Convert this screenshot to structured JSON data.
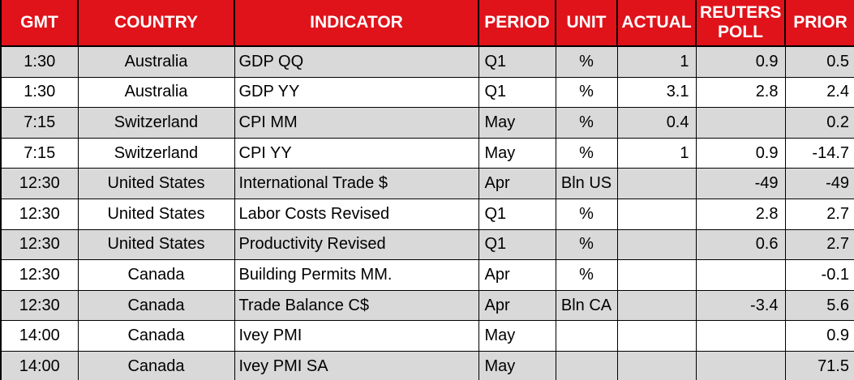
{
  "table": {
    "name": "economic-calendar",
    "columns": [
      {
        "key": "gmt",
        "label": "GMT"
      },
      {
        "key": "country",
        "label": "COUNTRY"
      },
      {
        "key": "indicator",
        "label": "INDICATOR"
      },
      {
        "key": "period",
        "label": "PERIOD"
      },
      {
        "key": "unit",
        "label": "UNIT"
      },
      {
        "key": "actual",
        "label": "ACTUAL"
      },
      {
        "key": "poll",
        "label": "REUTERS POLL"
      },
      {
        "key": "prior",
        "label": "PRIOR"
      }
    ],
    "rows": [
      {
        "gmt": "1:30",
        "country": "Australia",
        "indicator": "GDP QQ",
        "period": "Q1",
        "unit": "%",
        "actual": "1",
        "poll": "0.9",
        "prior": "0.5"
      },
      {
        "gmt": "1:30",
        "country": "Australia",
        "indicator": "GDP YY",
        "period": "Q1",
        "unit": "%",
        "actual": "3.1",
        "poll": "2.8",
        "prior": "2.4"
      },
      {
        "gmt": "7:15",
        "country": "Switzerland",
        "indicator": "CPI MM",
        "period": "May",
        "unit": "%",
        "actual": "0.4",
        "poll": "",
        "prior": "0.2"
      },
      {
        "gmt": "7:15",
        "country": "Switzerland",
        "indicator": "CPI YY",
        "period": "May",
        "unit": "%",
        "actual": "1",
        "poll": "0.9",
        "prior": "-14.7"
      },
      {
        "gmt": "12:30",
        "country": "United States",
        "indicator": "International Trade $",
        "period": "Apr",
        "unit": "Bln US",
        "actual": "",
        "poll": "-49",
        "prior": "-49"
      },
      {
        "gmt": "12:30",
        "country": "United States",
        "indicator": "Labor Costs Revised",
        "period": "Q1",
        "unit": "%",
        "actual": "",
        "poll": "2.8",
        "prior": "2.7"
      },
      {
        "gmt": "12:30",
        "country": "United States",
        "indicator": "Productivity Revised",
        "period": "Q1",
        "unit": "%",
        "actual": "",
        "poll": "0.6",
        "prior": "2.7"
      },
      {
        "gmt": "12:30",
        "country": "Canada",
        "indicator": "Building Permits MM.",
        "period": "Apr",
        "unit": "%",
        "actual": "",
        "poll": "",
        "prior": "-0.1"
      },
      {
        "gmt": "12:30",
        "country": "Canada",
        "indicator": "Trade Balance C$",
        "period": "Apr",
        "unit": "Bln CA",
        "actual": "",
        "poll": "-3.4",
        "prior": "5.6"
      },
      {
        "gmt": "14:00",
        "country": "Canada",
        "indicator": "Ivey PMI",
        "period": "May",
        "unit": "",
        "actual": "",
        "poll": "",
        "prior": "0.9"
      },
      {
        "gmt": "14:00",
        "country": "Canada",
        "indicator": "Ivey PMI SA",
        "period": "May",
        "unit": "",
        "actual": "",
        "poll": "",
        "prior": "71.5"
      }
    ],
    "colors": {
      "header_bg": "#E0121A",
      "header_text": "#FFFFFF",
      "row_shaded_bg": "#D9D9D9",
      "row_plain_bg": "#FFFFFF",
      "grid_border": "#000000",
      "body_text": "#000000"
    }
  }
}
